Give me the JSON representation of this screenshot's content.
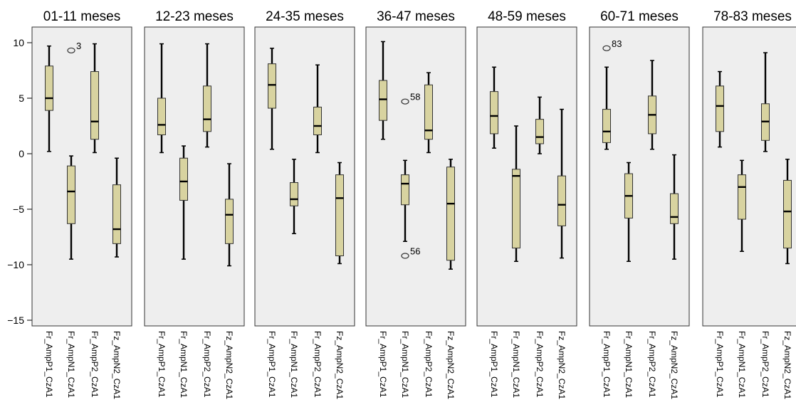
{
  "chart_data": {
    "type": "box",
    "y_ticks": [
      10,
      5,
      0,
      -5,
      -10,
      -15
    ],
    "ylim": [
      -16.6,
      11.2
    ],
    "grid": false,
    "colors": {
      "box_fill": "#d8d3a0",
      "panel_bg": "#eeeeee"
    },
    "categories": [
      "Fr_AmpP1_CzA1",
      "Fr_AmpN1_CzA1",
      "Fr_AmpP2_CzA1",
      "Fz_AmpN2_CzA1"
    ],
    "panels": [
      {
        "title": "01-11 meses",
        "labels": [
          "Fr_AmpP1_CzA1",
          "Fr_AmpN1_CzA1",
          "Fr_AmpP2_CzA1",
          "Fz_AmpN2_CzA1"
        ],
        "boxes": [
          {
            "min": 0.2,
            "q1": 3.9,
            "median": 5.0,
            "q3": 7.9,
            "max": 9.7
          },
          {
            "min": -9.5,
            "q1": -6.3,
            "median": -3.4,
            "q3": -1.1,
            "max": -0.2
          },
          {
            "min": 0.1,
            "q1": 1.3,
            "median": 2.9,
            "q3": 7.4,
            "max": 9.9
          },
          {
            "min": -9.3,
            "q1": -8.1,
            "median": -6.8,
            "q3": -2.8,
            "max": -0.4
          }
        ],
        "outliers": [
          {
            "box": 1,
            "value": 9.3,
            "label": "3"
          }
        ]
      },
      {
        "title": "12-23 meses",
        "labels": [
          "Fr_AmpP1_CzA1",
          "Fr_AmpN1_CzA1",
          "Fr_AmpP2_CzA1",
          "Fz_AmpN2_CzA1"
        ],
        "boxes": [
          {
            "min": 0.1,
            "q1": 1.7,
            "median": 2.6,
            "q3": 5.0,
            "max": 9.9
          },
          {
            "min": -9.5,
            "q1": -4.2,
            "median": -2.5,
            "q3": -0.4,
            "max": 0.7
          },
          {
            "min": 0.6,
            "q1": 2.0,
            "median": 3.1,
            "q3": 6.1,
            "max": 9.9
          },
          {
            "min": -10.1,
            "q1": -8.1,
            "median": -5.5,
            "q3": -4.1,
            "max": -0.9
          }
        ],
        "outliers": []
      },
      {
        "title": "24-35 meses",
        "labels": [
          "Fr_AmpP1_CzA1",
          "Fr_AmpN1_CzA1",
          "Fr_AmpP2_CzA1",
          "Fz_AmpN2_CzA1"
        ],
        "boxes": [
          {
            "min": 0.4,
            "q1": 4.1,
            "median": 6.2,
            "q3": 8.1,
            "max": 9.5
          },
          {
            "min": -7.2,
            "q1": -4.7,
            "median": -4.1,
            "q3": -2.6,
            "max": -0.5
          },
          {
            "min": 0.1,
            "q1": 1.7,
            "median": 2.5,
            "q3": 4.2,
            "max": 8.0
          },
          {
            "min": -9.9,
            "q1": -9.2,
            "median": -4.0,
            "q3": -1.9,
            "max": -0.8
          }
        ],
        "outliers": []
      },
      {
        "title": "36-47 meses",
        "labels": [
          "Fr_AmpP1_CzA1",
          "Fr_AmpN1_CzA1",
          "Fr_AmpP2_CzA1",
          "Fz_AmpN2_CzA1"
        ],
        "boxes": [
          {
            "min": 1.3,
            "q1": 3.0,
            "median": 4.9,
            "q3": 6.6,
            "max": 10.1
          },
          {
            "min": -7.9,
            "q1": -4.6,
            "median": -2.7,
            "q3": -1.9,
            "max": -0.6
          },
          {
            "min": 0.1,
            "q1": 1.3,
            "median": 2.1,
            "q3": 6.2,
            "max": 7.3
          },
          {
            "min": -10.4,
            "q1": -9.6,
            "median": -4.5,
            "q3": -1.2,
            "max": -0.5
          }
        ],
        "outliers": [
          {
            "box": 1,
            "value": 4.7,
            "label": "58"
          },
          {
            "box": 1,
            "value": -9.2,
            "label": "56"
          }
        ]
      },
      {
        "title": "48-59 meses",
        "labels": [
          "Fr_AmpP1_CzA1",
          "Fr_AmpN1_CzA1",
          "Fr_AmpP2_CzA1",
          "Fz_AmpN2_CzA1"
        ],
        "boxes": [
          {
            "min": 0.5,
            "q1": 1.8,
            "median": 3.4,
            "q3": 5.6,
            "max": 7.8
          },
          {
            "min": -9.7,
            "q1": -8.5,
            "median": -2.0,
            "q3": -1.4,
            "max": 2.5
          },
          {
            "min": 0.0,
            "q1": 0.9,
            "median": 1.5,
            "q3": 3.1,
            "max": 5.1
          },
          {
            "min": -9.4,
            "q1": -6.5,
            "median": -4.6,
            "q3": -2.0,
            "max": 4.0
          }
        ],
        "outliers": []
      },
      {
        "title": "60-71 meses",
        "labels": [
          "Fr_AmpP1_CzA1",
          "Fr_AmpN1_CzA1",
          "Fr_AmpP2_CzA1",
          "Fz_AmpN2_CzA1"
        ],
        "boxes": [
          {
            "min": 0.4,
            "q1": 1.0,
            "median": 2.0,
            "q3": 4.0,
            "max": 7.8
          },
          {
            "min": -9.7,
            "q1": -5.8,
            "median": -3.8,
            "q3": -1.8,
            "max": -0.8
          },
          {
            "min": 0.4,
            "q1": 1.8,
            "median": 3.5,
            "q3": 5.2,
            "max": 8.4
          },
          {
            "min": -9.5,
            "q1": -6.3,
            "median": -5.7,
            "q3": -3.6,
            "max": -0.1
          }
        ],
        "outliers": [
          {
            "box": 0,
            "value": 9.5,
            "label": "83"
          }
        ]
      },
      {
        "title": "78-83 meses",
        "labels": [
          "Fr_AmpP1_CzA1",
          "Fr_AmpN1_CzA1",
          "Fr_AmpP2_CzA1",
          "Fz_AmpN2_CzA1"
        ],
        "boxes": [
          {
            "min": 0.6,
            "q1": 2.0,
            "median": 4.3,
            "q3": 6.1,
            "max": 7.4
          },
          {
            "min": -8.8,
            "q1": -5.9,
            "median": -3.0,
            "q3": -1.9,
            "max": -0.6
          },
          {
            "min": 0.2,
            "q1": 1.2,
            "median": 2.9,
            "q3": 4.5,
            "max": 9.1
          },
          {
            "min": -9.9,
            "q1": -8.5,
            "median": -5.2,
            "q3": -2.4,
            "max": -0.5
          }
        ],
        "outliers": []
      }
    ]
  }
}
